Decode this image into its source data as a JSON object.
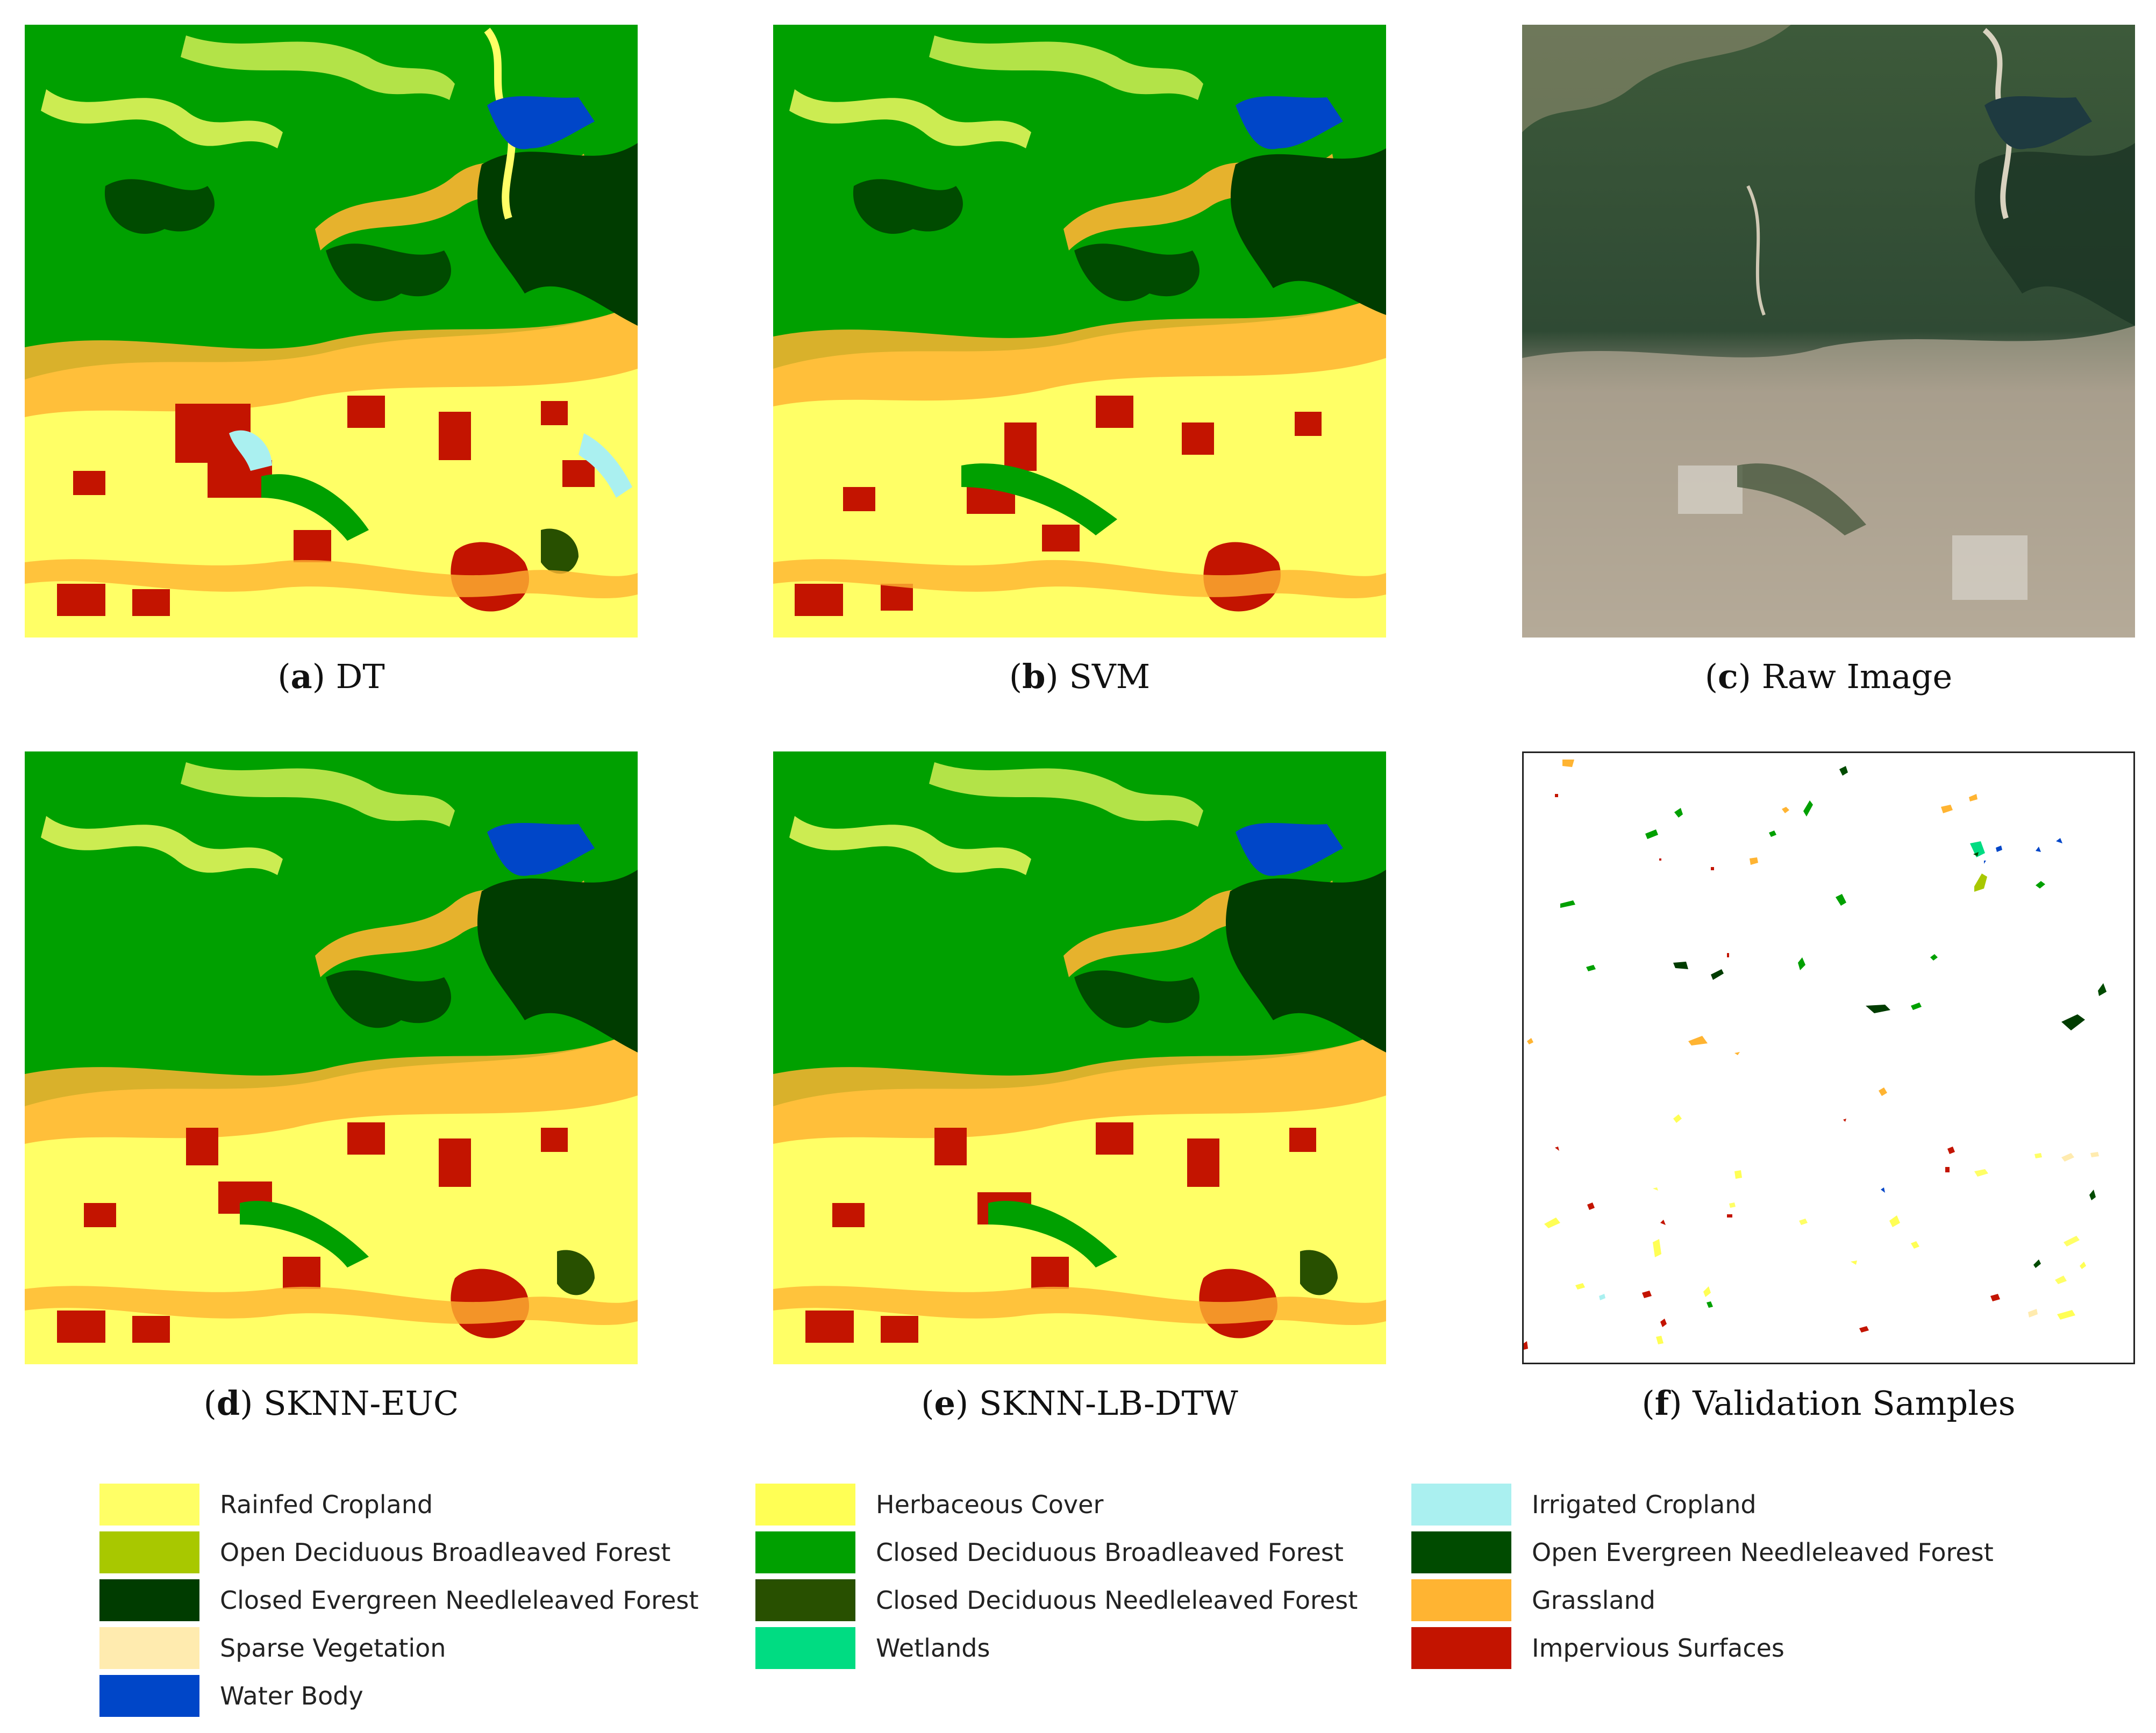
{
  "panels": [
    {
      "letter": "a",
      "title": "DT"
    },
    {
      "letter": "b",
      "title": "SVM"
    },
    {
      "letter": "c",
      "title": "Raw Image"
    },
    {
      "letter": "d",
      "title": "SKNN-EUC"
    },
    {
      "letter": "e",
      "title": "SKNN-LB-DTW"
    },
    {
      "letter": "f",
      "title": "Validation Samples"
    }
  ],
  "legend": [
    {
      "label": "Rainfed Cropland",
      "color": "#ffff66"
    },
    {
      "label": "Herbaceous Cover",
      "color": "#ffff55"
    },
    {
      "label": "Irrigated Cropland",
      "color": "#aaf0f0"
    },
    {
      "label": "Open Deciduous Broadleaved Forest",
      "color": "#a8c800"
    },
    {
      "label": "Closed Deciduous Broadleaved Forest",
      "color": "#00a000"
    },
    {
      "label": "Open Evergreen Needleleaved Forest",
      "color": "#004b00"
    },
    {
      "label": "Closed Evergreen Needleleaved Forest",
      "color": "#003c00"
    },
    {
      "label": "Closed Deciduous Needleleaved Forest",
      "color": "#285000"
    },
    {
      "label": "Grassland",
      "color": "#ffb432"
    },
    {
      "label": "Sparse Vegetation",
      "color": "#ffebaf"
    },
    {
      "label": "Wetlands",
      "color": "#00dc82"
    },
    {
      "label": "Impervious Surfaces",
      "color": "#c31400"
    },
    {
      "label": "Water Body",
      "color": "#0046c8"
    }
  ]
}
